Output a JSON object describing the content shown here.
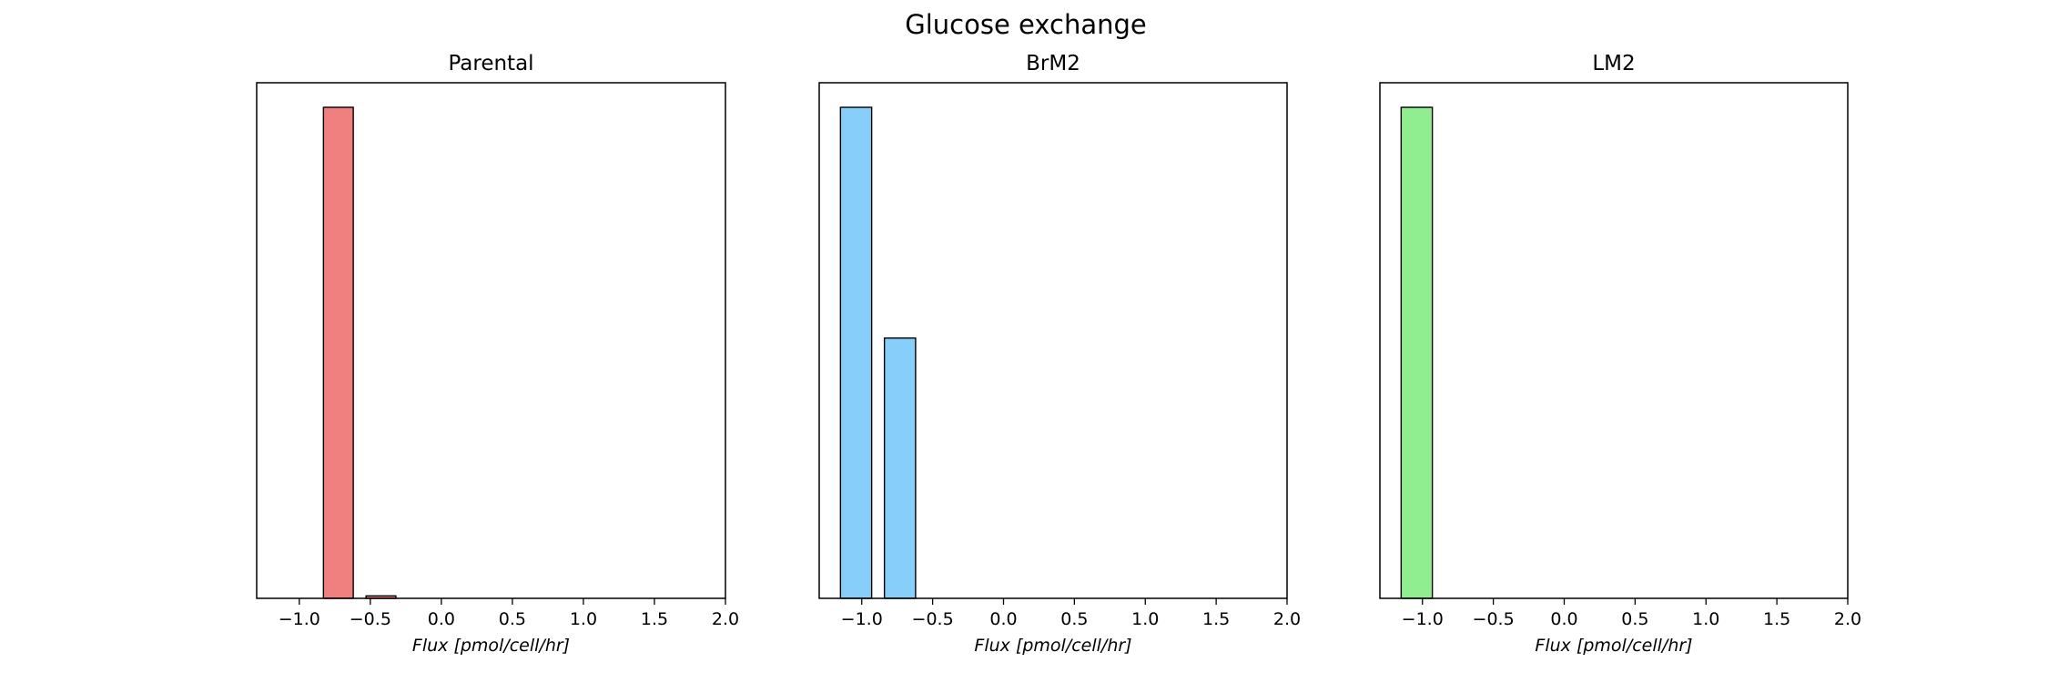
{
  "suptitle": "Glucose exchange",
  "chart_data": [
    {
      "type": "bar",
      "title": "Parental",
      "xlabel": "Flux [pmol/cell/hr]",
      "ylabel": "",
      "xlim": [
        -1.3,
        2.0
      ],
      "ylim": [
        0,
        1.05
      ],
      "xticks": [
        -1.0,
        -0.5,
        0.0,
        0.5,
        1.0,
        1.5,
        2.0
      ],
      "xtick_labels": [
        "−1.0",
        "−0.5",
        "0.0",
        "0.5",
        "1.0",
        "1.5",
        "2.0"
      ],
      "yticks_visible": false,
      "color": "#f08080",
      "bins": [
        {
          "x0": -0.83,
          "x1": -0.62,
          "value": 1.0
        },
        {
          "x0": -0.53,
          "x1": -0.32,
          "value": 0.005
        }
      ]
    },
    {
      "type": "bar",
      "title": "BrM2",
      "xlabel": "Flux [pmol/cell/hr]",
      "ylabel": "",
      "xlim": [
        -1.3,
        2.0
      ],
      "ylim": [
        0,
        1.05
      ],
      "xticks": [
        -1.0,
        -0.5,
        0.0,
        0.5,
        1.0,
        1.5,
        2.0
      ],
      "xtick_labels": [
        "−1.0",
        "−0.5",
        "0.0",
        "0.5",
        "1.0",
        "1.5",
        "2.0"
      ],
      "yticks_visible": false,
      "color": "#87cefa",
      "bins": [
        {
          "x0": -1.15,
          "x1": -0.93,
          "value": 1.0
        },
        {
          "x0": -0.84,
          "x1": -0.62,
          "value": 0.53
        }
      ]
    },
    {
      "type": "bar",
      "title": "LM2",
      "xlabel": "Flux [pmol/cell/hr]",
      "ylabel": "",
      "xlim": [
        -1.3,
        2.0
      ],
      "ylim": [
        0,
        1.05
      ],
      "xticks": [
        -1.0,
        -0.5,
        0.0,
        0.5,
        1.0,
        1.5,
        2.0
      ],
      "xtick_labels": [
        "−1.0",
        "−0.5",
        "0.0",
        "0.5",
        "1.0",
        "1.5",
        "2.0"
      ],
      "yticks_visible": false,
      "color": "#90ee90",
      "bins": [
        {
          "x0": -1.15,
          "x1": -0.93,
          "value": 1.0
        }
      ]
    }
  ]
}
